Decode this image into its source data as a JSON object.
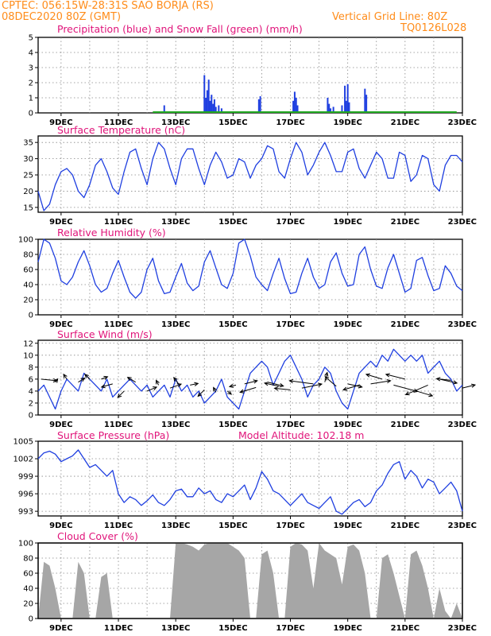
{
  "header": {
    "station": "CPTEC:  056:15W-28:31S  SAO BORJA (RS)",
    "run": "08DEC2020 80Z (GMT)",
    "grid_note": "Vertical Grid Line: 80Z",
    "code": "TQ0126L028"
  },
  "colors": {
    "header": "#ff8c1a",
    "title": "#e0147a",
    "line": "#1f3fe0",
    "snow": "#22aa22",
    "cloud": "#a6a6a6"
  },
  "x_axis": {
    "range_days": [
      8.2,
      23
    ],
    "tick_labels": [
      "9DEC",
      "11DEC",
      "13DEC",
      "15DEC",
      "17DEC",
      "19DEC",
      "21DEC",
      "23DEC"
    ]
  },
  "chart_data": [
    {
      "type": "bar",
      "title": "Precipitation (blue) and Snow Fall (green) (mm/h)",
      "ylim": [
        0,
        5
      ],
      "yticks": [
        "0",
        "1",
        "2",
        "3",
        "4",
        "5"
      ],
      "series": [
        {
          "name": "Precipitation",
          "color": "#1f3fe0",
          "x": [
            12.6,
            14.0,
            14.05,
            14.1,
            14.15,
            14.2,
            14.25,
            14.3,
            14.35,
            14.4,
            14.5,
            14.6,
            15.9,
            15.95,
            17.1,
            17.15,
            17.2,
            17.25,
            18.3,
            18.35,
            18.4,
            18.5,
            18.8,
            18.9,
            18.95,
            19.0,
            19.05,
            19.6,
            19.65
          ],
          "values": [
            0.5,
            2.5,
            1.0,
            1.5,
            2.2,
            0.8,
            1.2,
            0.6,
            0.9,
            0.4,
            0.5,
            0.3,
            0.9,
            1.1,
            0.8,
            1.4,
            1.0,
            0.5,
            1.0,
            0.6,
            0.3,
            0.4,
            0.5,
            1.8,
            0.8,
            1.9,
            0.7,
            1.6,
            1.2
          ]
        },
        {
          "name": "Snow Fall",
          "color": "#22aa22",
          "x": [
            12.2,
            22.8
          ],
          "values": [
            0.05,
            0.05
          ]
        }
      ]
    },
    {
      "type": "line",
      "title": "Surface Temperature (nC)",
      "ylim": [
        13.5,
        37
      ],
      "yticks": [
        "15",
        "20",
        "25",
        "30",
        "35"
      ],
      "ytick_values": [
        15,
        20,
        25,
        30,
        35
      ],
      "x": [
        8.2,
        8.4,
        8.6,
        8.8,
        9.0,
        9.2,
        9.4,
        9.6,
        9.8,
        10.0,
        10.2,
        10.4,
        10.6,
        10.8,
        11.0,
        11.2,
        11.4,
        11.6,
        11.8,
        12.0,
        12.2,
        12.4,
        12.6,
        12.8,
        13.0,
        13.2,
        13.4,
        13.6,
        13.8,
        14.0,
        14.2,
        14.4,
        14.6,
        14.8,
        15.0,
        15.2,
        15.4,
        15.6,
        15.8,
        16.0,
        16.2,
        16.4,
        16.6,
        16.8,
        17.0,
        17.2,
        17.4,
        17.6,
        17.8,
        18.0,
        18.2,
        18.4,
        18.6,
        18.8,
        19.0,
        19.2,
        19.4,
        19.6,
        19.8,
        20.0,
        20.2,
        20.4,
        20.6,
        20.8,
        21.0,
        21.2,
        21.4,
        21.6,
        21.8,
        22.0,
        22.2,
        22.4,
        22.6,
        22.8,
        23.0
      ],
      "values": [
        20,
        14,
        16,
        22,
        26,
        27,
        25,
        20,
        18,
        22,
        28,
        30,
        26,
        21,
        19,
        26,
        32,
        33,
        27,
        22,
        30,
        35,
        33,
        27,
        22,
        30,
        33,
        33,
        27,
        22,
        28,
        32,
        29,
        24,
        25,
        30,
        29,
        24,
        28,
        30,
        34,
        33,
        26,
        24,
        30,
        35,
        32,
        25,
        28,
        32,
        35,
        31,
        26,
        26,
        32,
        33,
        27,
        24,
        28,
        32,
        30,
        24,
        24,
        32,
        31,
        23,
        25,
        31,
        30,
        22,
        20,
        28,
        31,
        31,
        29
      ]
    },
    {
      "type": "line",
      "title": "Relative Humidity (%)",
      "ylim": [
        0,
        100
      ],
      "yticks": [
        "0",
        "20",
        "40",
        "60",
        "80",
        "100"
      ],
      "ytick_values": [
        0,
        20,
        40,
        60,
        80,
        100
      ],
      "x": [
        8.2,
        8.4,
        8.6,
        8.8,
        9.0,
        9.2,
        9.4,
        9.6,
        9.8,
        10.0,
        10.2,
        10.4,
        10.6,
        10.8,
        11.0,
        11.2,
        11.4,
        11.6,
        11.8,
        12.0,
        12.2,
        12.4,
        12.6,
        12.8,
        13.0,
        13.2,
        13.4,
        13.6,
        13.8,
        14.0,
        14.2,
        14.4,
        14.6,
        14.8,
        15.0,
        15.2,
        15.4,
        15.6,
        15.8,
        16.0,
        16.2,
        16.4,
        16.6,
        16.8,
        17.0,
        17.2,
        17.4,
        17.6,
        17.8,
        18.0,
        18.2,
        18.4,
        18.6,
        18.8,
        19.0,
        19.2,
        19.4,
        19.6,
        19.8,
        20.0,
        20.2,
        20.4,
        20.6,
        20.8,
        21.0,
        21.2,
        21.4,
        21.6,
        21.8,
        22.0,
        22.2,
        22.4,
        22.6,
        22.8,
        23.0
      ],
      "values": [
        70,
        100,
        95,
        75,
        45,
        40,
        50,
        70,
        85,
        65,
        40,
        30,
        35,
        55,
        72,
        50,
        30,
        22,
        30,
        60,
        75,
        45,
        28,
        30,
        50,
        68,
        42,
        32,
        38,
        70,
        85,
        62,
        40,
        35,
        55,
        95,
        100,
        78,
        50,
        40,
        32,
        55,
        75,
        48,
        28,
        30,
        55,
        75,
        50,
        35,
        40,
        70,
        82,
        55,
        38,
        40,
        80,
        90,
        60,
        38,
        35,
        62,
        80,
        55,
        30,
        35,
        72,
        76,
        52,
        32,
        35,
        65,
        55,
        38,
        32
      ]
    },
    {
      "type": "line",
      "title": "Surface Wind (m/s)",
      "ylim": [
        0,
        12.5
      ],
      "yticks": [
        "0",
        "2",
        "4",
        "6",
        "8",
        "10",
        "12"
      ],
      "ytick_values": [
        0,
        2,
        4,
        6,
        8,
        10,
        12
      ],
      "x": [
        8.2,
        8.4,
        8.6,
        8.8,
        9.0,
        9.2,
        9.4,
        9.6,
        9.8,
        10.0,
        10.2,
        10.4,
        10.6,
        10.8,
        11.0,
        11.2,
        11.4,
        11.6,
        11.8,
        12.0,
        12.2,
        12.4,
        12.6,
        12.8,
        13.0,
        13.2,
        13.4,
        13.6,
        13.8,
        14.0,
        14.2,
        14.4,
        14.6,
        14.8,
        15.0,
        15.2,
        15.4,
        15.6,
        15.8,
        16.0,
        16.2,
        16.4,
        16.6,
        16.8,
        17.0,
        17.2,
        17.4,
        17.6,
        17.8,
        18.0,
        18.2,
        18.4,
        18.6,
        18.8,
        19.0,
        19.2,
        19.4,
        19.6,
        19.8,
        20.0,
        20.2,
        20.4,
        20.6,
        20.8,
        21.0,
        21.2,
        21.4,
        21.6,
        21.8,
        22.0,
        22.2,
        22.4,
        22.6,
        22.8,
        23.0
      ],
      "values": [
        4,
        5,
        3,
        1,
        4,
        6,
        5,
        4,
        7,
        6,
        5,
        4,
        6,
        3,
        4,
        5,
        6,
        5,
        4,
        5,
        3,
        4,
        5,
        3,
        6,
        4,
        5,
        3,
        4,
        2,
        3,
        4,
        6,
        3,
        2,
        1,
        4,
        7,
        8,
        9,
        8,
        5,
        7,
        9,
        10,
        8,
        6,
        3,
        5,
        6,
        8,
        7,
        4,
        2,
        1,
        4,
        7,
        8,
        9,
        8,
        10,
        9,
        11,
        10,
        9,
        10,
        9,
        10,
        7,
        8,
        9,
        7,
        6,
        4,
        5
      ],
      "arrow_vectors": [
        [
          8.3,
          6.0,
          20,
          2
        ],
        [
          8.8,
          5.5,
          3,
          -4
        ],
        [
          9.2,
          6.0,
          -4,
          -6
        ],
        [
          9.6,
          5.5,
          8,
          -5
        ],
        [
          10.0,
          6.0,
          -6,
          -6
        ],
        [
          10.4,
          6.0,
          8,
          -3
        ],
        [
          10.8,
          5.2,
          -14,
          4
        ],
        [
          11.2,
          4.0,
          -8,
          8
        ],
        [
          11.6,
          5.5,
          -10,
          -6
        ],
        [
          12.0,
          4.0,
          12,
          -5
        ],
        [
          12.4,
          5.0,
          -3,
          -6
        ],
        [
          12.8,
          4.5,
          14,
          -5
        ],
        [
          13.1,
          5.2,
          -6,
          -8
        ],
        [
          13.5,
          5.0,
          10,
          -2
        ],
        [
          14.0,
          4.2,
          -8,
          8
        ],
        [
          14.4,
          3.8,
          -3,
          -6
        ],
        [
          14.8,
          4.0,
          5,
          4
        ],
        [
          15.1,
          5.0,
          -8,
          2
        ],
        [
          15.4,
          5.2,
          16,
          -4
        ],
        [
          15.8,
          4.6,
          -20,
          6
        ],
        [
          16.2,
          5.5,
          20,
          5
        ],
        [
          16.6,
          4.8,
          -18,
          -4
        ],
        [
          17.0,
          4.2,
          -20,
          -2
        ],
        [
          17.4,
          4.5,
          25,
          -5
        ],
        [
          17.8,
          5.2,
          -30,
          -4
        ],
        [
          18.2,
          5.5,
          3,
          -12
        ],
        [
          18.6,
          4.8,
          -14,
          -12
        ],
        [
          19.0,
          5.2,
          18,
          4
        ],
        [
          19.4,
          5.0,
          -20,
          6
        ],
        [
          19.8,
          5.2,
          25,
          -4
        ],
        [
          20.2,
          6.0,
          -20,
          -6
        ],
        [
          20.6,
          5.0,
          30,
          8
        ],
        [
          21.0,
          6.0,
          -24,
          -6
        ],
        [
          21.4,
          4.0,
          20,
          6
        ],
        [
          21.8,
          5.0,
          -28,
          12
        ],
        [
          22.2,
          6.0,
          22,
          5
        ],
        [
          22.6,
          5.8,
          -18,
          -2
        ],
        [
          23.0,
          4.5,
          16,
          -4
        ]
      ]
    },
    {
      "type": "line",
      "title": "Surface Pressure (hPa)",
      "annotation": "Model Altitude: 102.18 m",
      "ylim": [
        992.2,
        1005
      ],
      "yticks": [
        "993",
        "996",
        "999",
        "1002",
        "1005"
      ],
      "ytick_values": [
        993,
        996,
        999,
        1002,
        1005
      ],
      "x": [
        8.2,
        8.4,
        8.6,
        8.8,
        9.0,
        9.2,
        9.4,
        9.6,
        9.8,
        10.0,
        10.2,
        10.4,
        10.6,
        10.8,
        11.0,
        11.2,
        11.4,
        11.6,
        11.8,
        12.0,
        12.2,
        12.4,
        12.6,
        12.8,
        13.0,
        13.2,
        13.4,
        13.6,
        13.8,
        14.0,
        14.2,
        14.4,
        14.6,
        14.8,
        15.0,
        15.2,
        15.4,
        15.6,
        15.8,
        16.0,
        16.2,
        16.4,
        16.6,
        16.8,
        17.0,
        17.2,
        17.4,
        17.6,
        17.8,
        18.0,
        18.2,
        18.4,
        18.6,
        18.8,
        19.0,
        19.2,
        19.4,
        19.6,
        19.8,
        20.0,
        20.2,
        20.4,
        20.6,
        20.8,
        21.0,
        21.2,
        21.4,
        21.6,
        21.8,
        22.0,
        22.2,
        22.4,
        22.6,
        22.8,
        23.0
      ],
      "values": [
        1002.0,
        1003.0,
        1003.3,
        1002.8,
        1001.5,
        1002.0,
        1002.5,
        1003.5,
        1002.0,
        1000.5,
        1001.0,
        1000.0,
        999.0,
        1000.0,
        996.0,
        994.5,
        995.5,
        995.0,
        994.0,
        994.8,
        995.8,
        994.5,
        994.0,
        995.0,
        996.5,
        996.8,
        995.5,
        995.5,
        997.0,
        996.0,
        996.5,
        995.0,
        994.5,
        996.0,
        995.5,
        996.5,
        997.5,
        995.0,
        997.0,
        999.8,
        998.5,
        996.5,
        996.0,
        995.0,
        994.0,
        995.0,
        996.0,
        994.5,
        994.0,
        993.5,
        994.5,
        995.5,
        993.0,
        992.5,
        993.5,
        994.5,
        995.0,
        993.8,
        994.5,
        996.5,
        997.5,
        999.5,
        1001.0,
        1001.5,
        998.5,
        1000.0,
        999.0,
        997.0,
        998.5,
        998.0,
        996.0,
        997.0,
        998.0,
        996.5,
        993.0
      ]
    },
    {
      "type": "area",
      "title": "Cloud Cover (%)",
      "ylim": [
        0,
        100
      ],
      "yticks": [
        "0",
        "20",
        "40",
        "60",
        "80",
        "100"
      ],
      "ytick_values": [
        0,
        20,
        40,
        60,
        80,
        100
      ],
      "x": [
        8.2,
        8.4,
        8.6,
        8.8,
        9.0,
        9.2,
        9.4,
        9.6,
        9.8,
        10.0,
        10.2,
        10.4,
        10.6,
        10.8,
        11.0,
        11.2,
        11.4,
        11.6,
        11.8,
        12.0,
        12.2,
        12.4,
        12.6,
        12.8,
        13.0,
        13.2,
        13.4,
        13.6,
        13.8,
        14.0,
        14.2,
        14.4,
        14.6,
        14.8,
        15.0,
        15.2,
        15.4,
        15.6,
        15.8,
        16.0,
        16.2,
        16.4,
        16.6,
        16.8,
        17.0,
        17.2,
        17.4,
        17.6,
        17.8,
        18.0,
        18.2,
        18.4,
        18.6,
        18.8,
        19.0,
        19.2,
        19.4,
        19.6,
        19.8,
        20.0,
        20.2,
        20.4,
        20.6,
        20.8,
        21.0,
        21.2,
        21.4,
        21.6,
        21.8,
        22.0,
        22.2,
        22.4,
        22.6,
        22.8,
        23.0
      ],
      "values": [
        0,
        75,
        70,
        40,
        0,
        0,
        0,
        75,
        60,
        0,
        0,
        55,
        60,
        0,
        0,
        0,
        0,
        0,
        0,
        0,
        0,
        0,
        0,
        0,
        100,
        100,
        98,
        95,
        90,
        98,
        100,
        100,
        100,
        100,
        95,
        90,
        80,
        0,
        0,
        85,
        90,
        60,
        0,
        0,
        95,
        100,
        98,
        90,
        40,
        100,
        90,
        85,
        80,
        45,
        95,
        98,
        90,
        60,
        0,
        0,
        80,
        85,
        60,
        30,
        0,
        85,
        90,
        70,
        40,
        0,
        40,
        10,
        0,
        20,
        0
      ]
    }
  ]
}
